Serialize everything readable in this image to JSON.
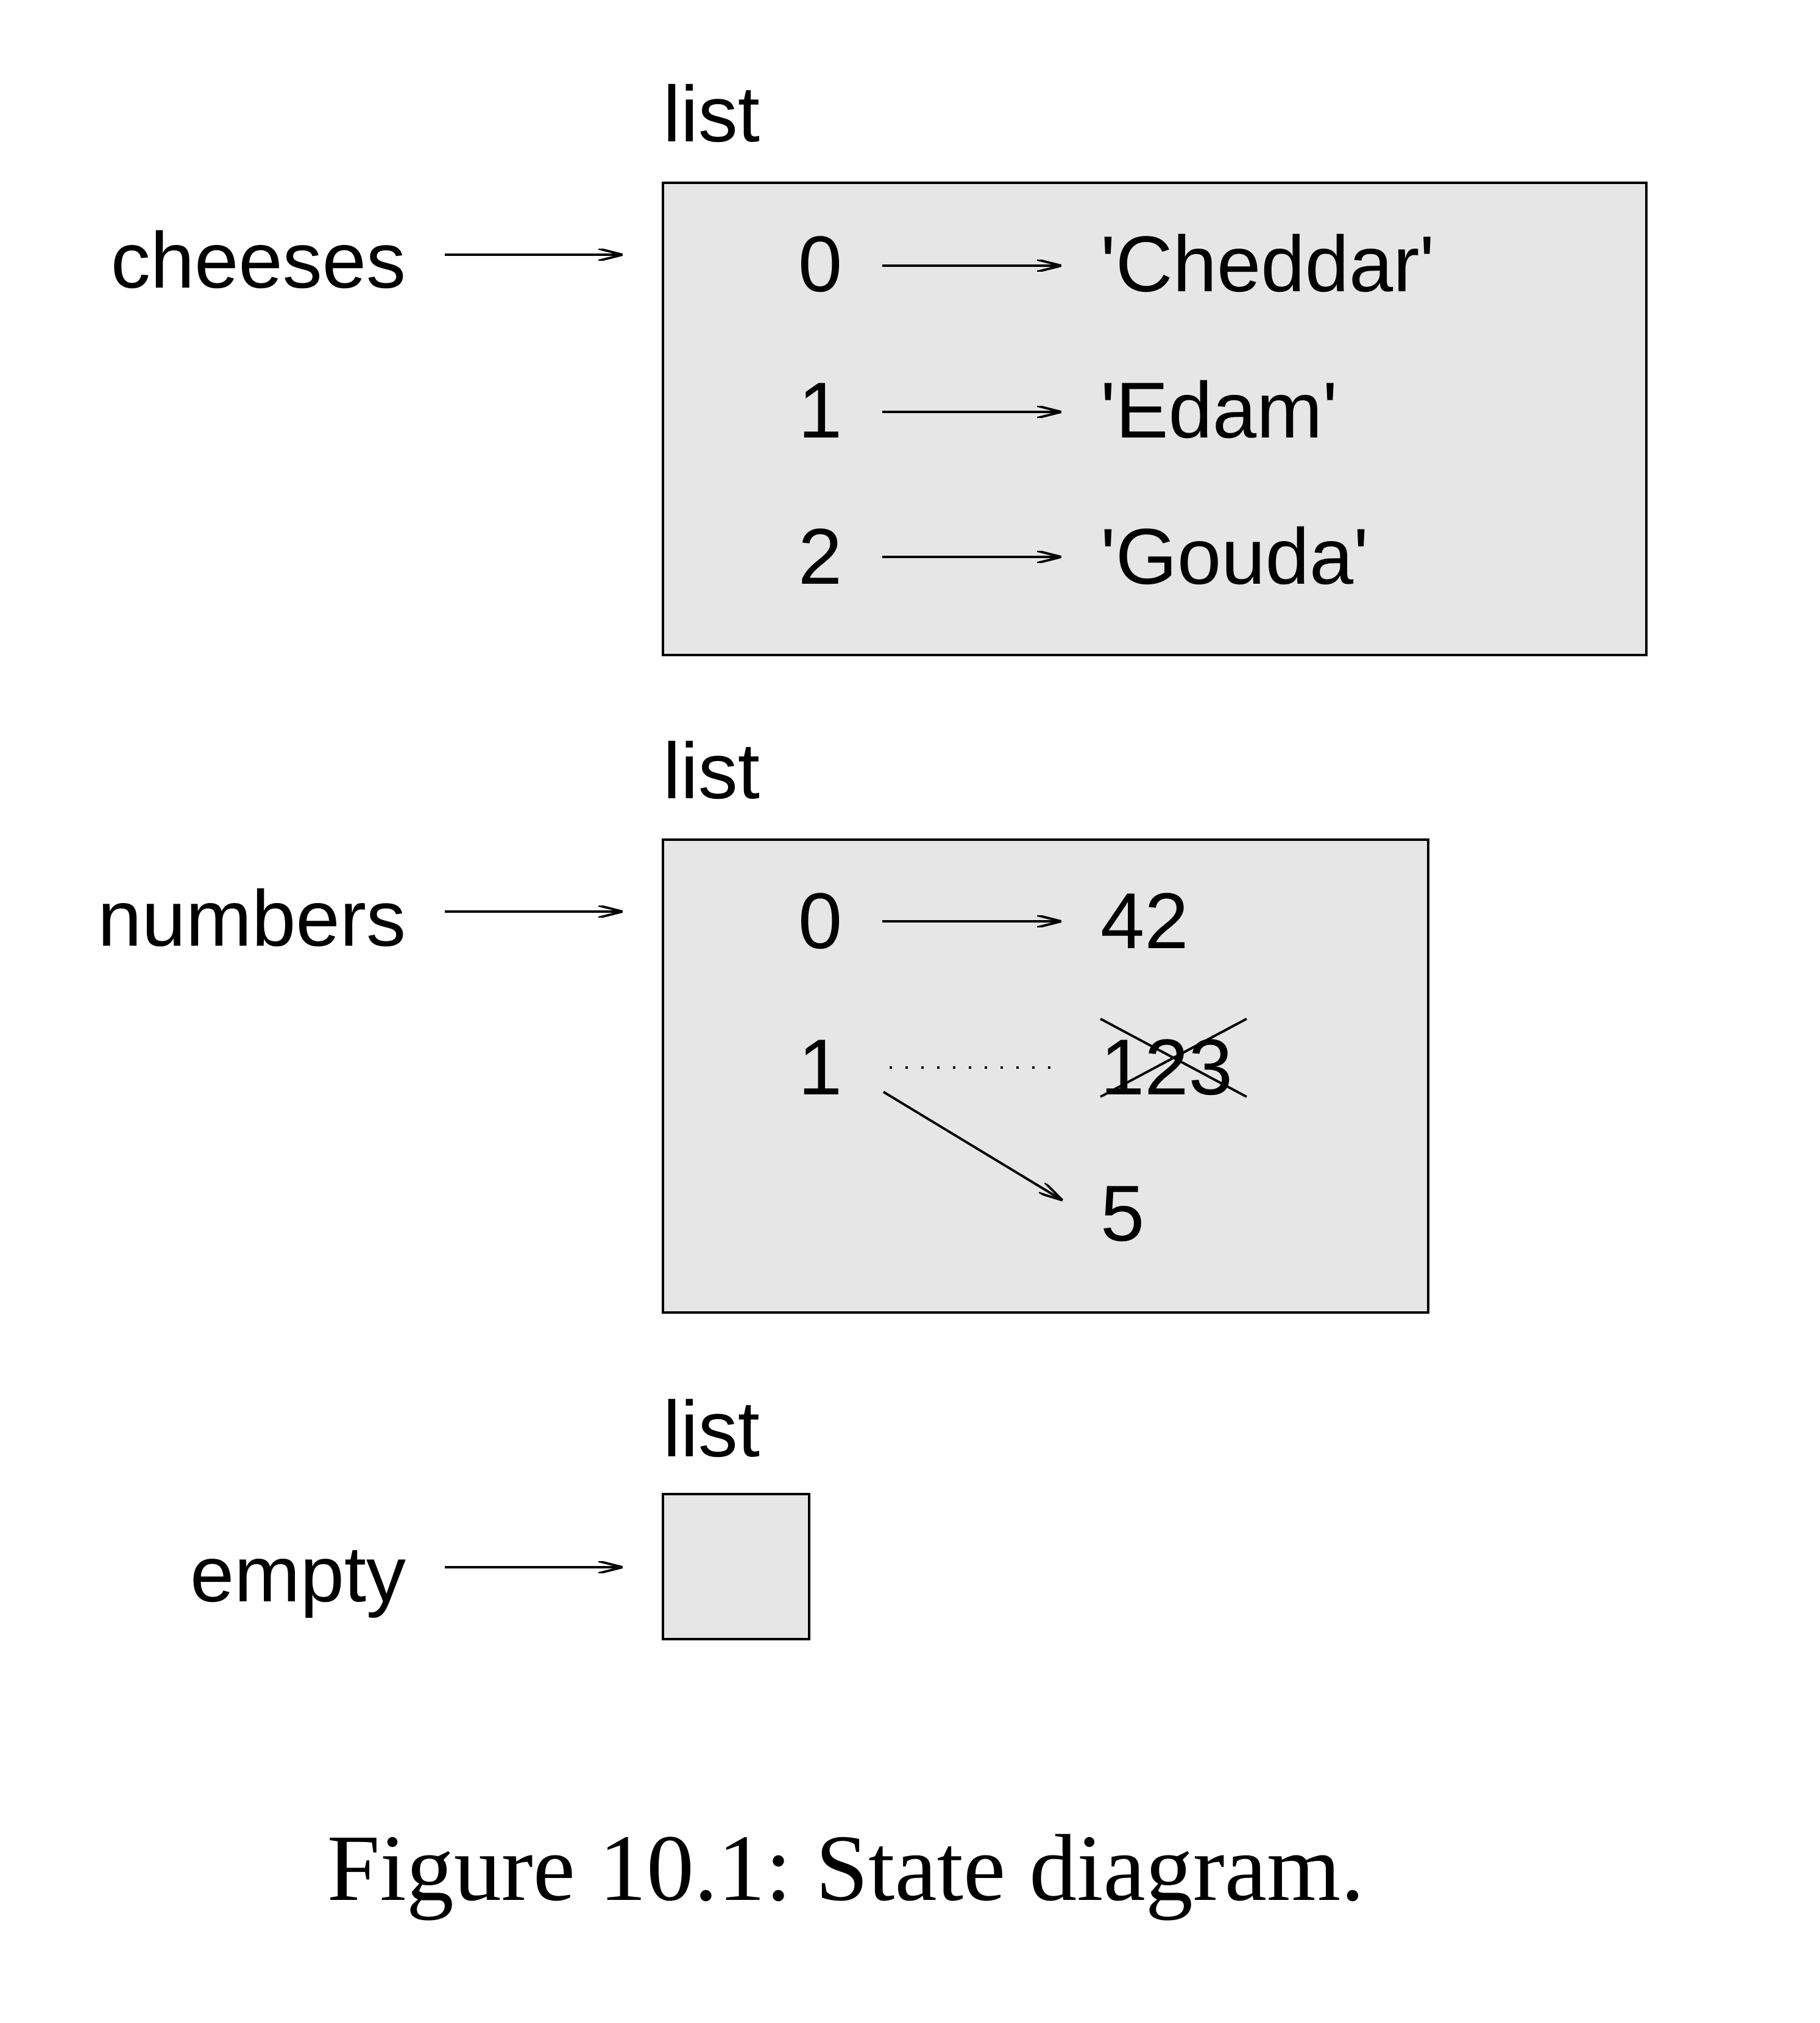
{
  "lists": [
    {
      "type_label": "list",
      "variable": "cheeses",
      "elements": [
        {
          "index": "0",
          "value": "'Cheddar'"
        },
        {
          "index": "1",
          "value": "'Edam'"
        },
        {
          "index": "2",
          "value": "'Gouda'"
        }
      ]
    },
    {
      "type_label": "list",
      "variable": "numbers",
      "elements": [
        {
          "index": "0",
          "value": "42"
        },
        {
          "index": "1",
          "old_value": "123",
          "value": "5"
        }
      ]
    },
    {
      "type_label": "list",
      "variable": "empty",
      "elements": []
    }
  ],
  "caption": "Figure 10.1: State diagram."
}
